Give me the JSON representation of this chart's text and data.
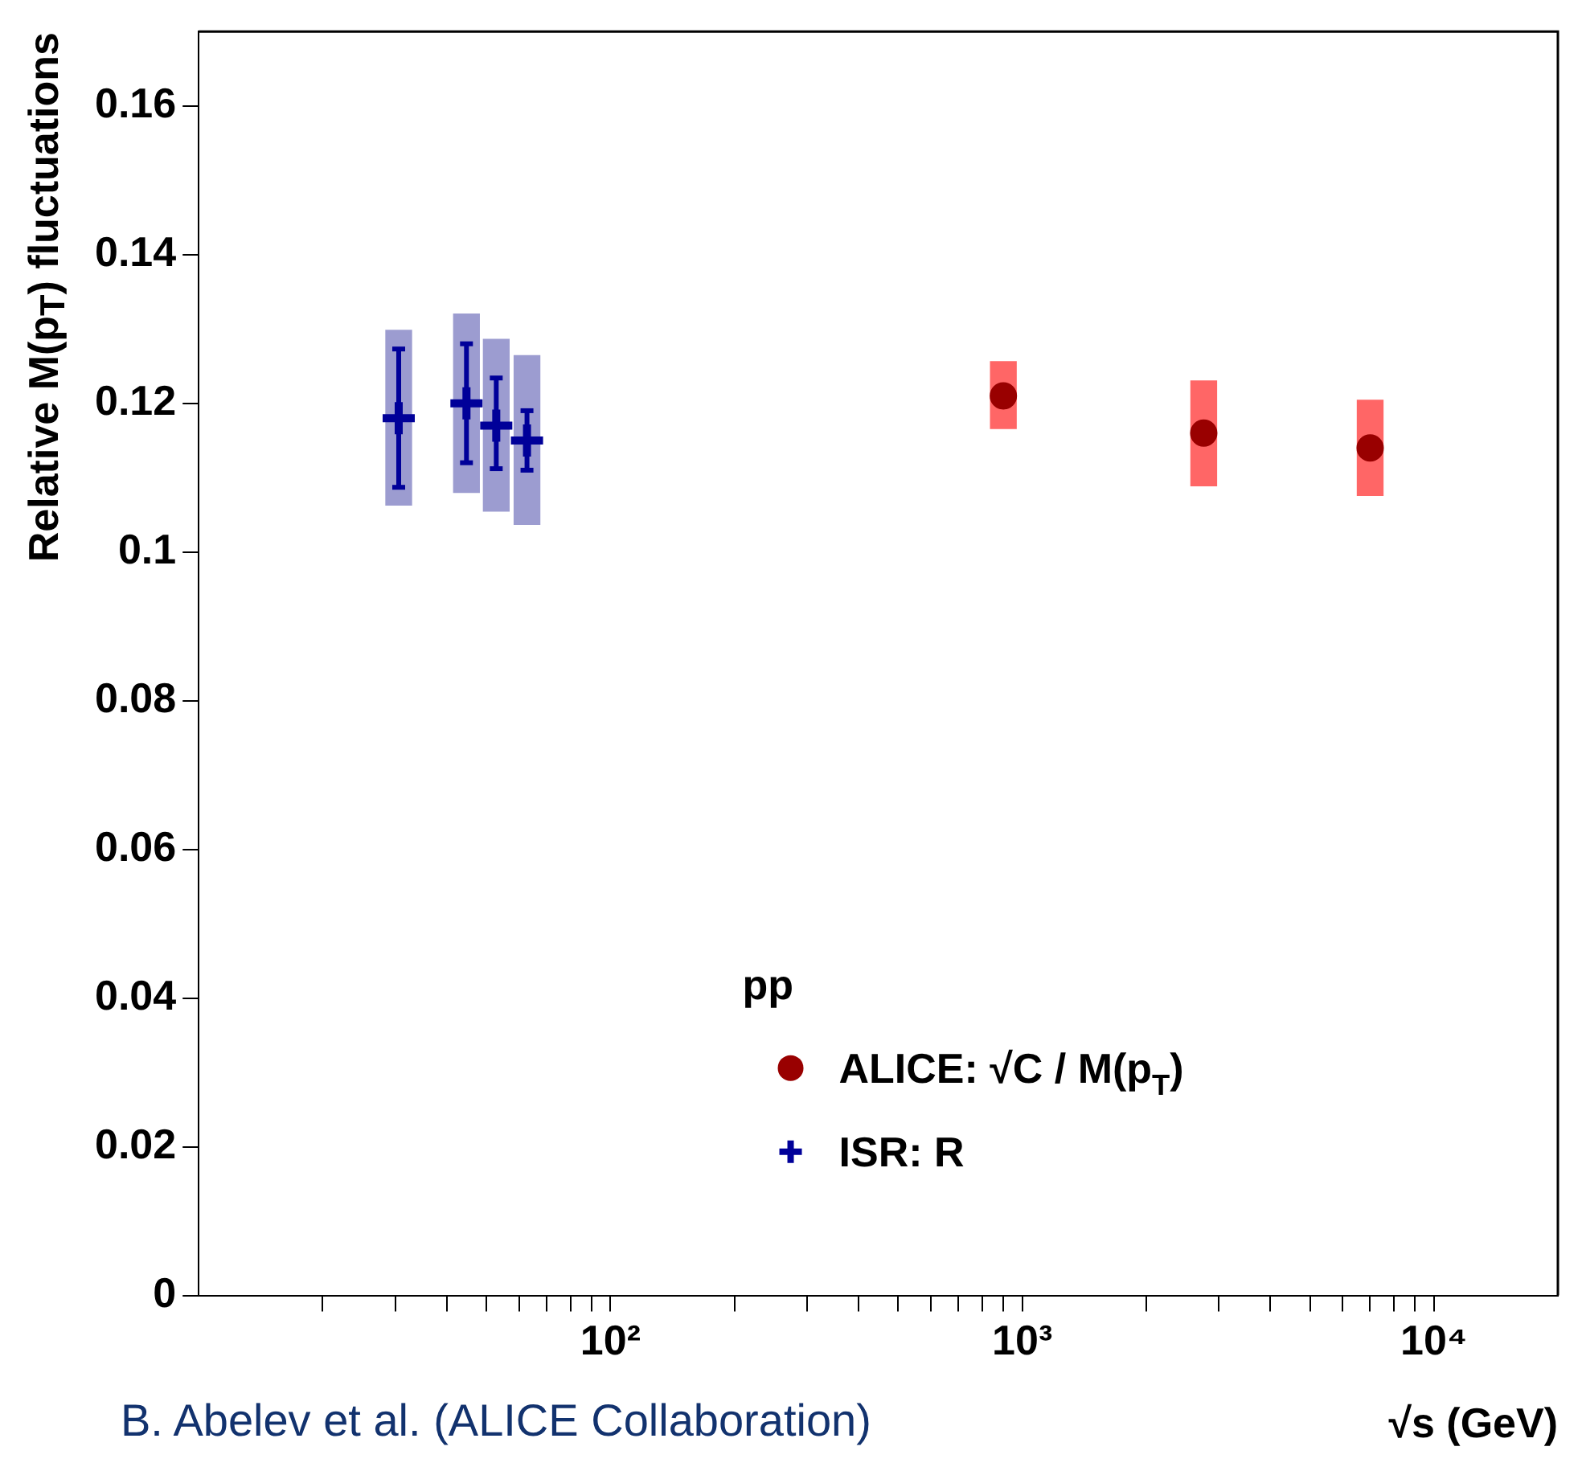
{
  "chart_data": {
    "type": "scatter",
    "xlabel": "√s  (GeV)",
    "ylabel": "Relative M(p$_{T}$) fluctuations",
    "legend_title": "pp",
    "log": "x",
    "legend": "bottom right",
    "grid": false,
    "xlim": [
      10,
      20000
    ],
    "ylim": [
      0,
      0.17
    ],
    "xticks": [
      {
        "value": 20,
        "label": null
      },
      {
        "value": 30,
        "label": null
      },
      {
        "value": 40,
        "label": null
      },
      {
        "value": 50,
        "label": null
      },
      {
        "value": 60,
        "label": null
      },
      {
        "value": 70,
        "label": null
      },
      {
        "value": 80,
        "label": null
      },
      {
        "value": 90,
        "label": null
      },
      {
        "value": 100,
        "label": "10²"
      },
      {
        "value": 200,
        "label": null
      },
      {
        "value": 300,
        "label": null
      },
      {
        "value": 400,
        "label": null
      },
      {
        "value": 500,
        "label": null
      },
      {
        "value": 600,
        "label": null
      },
      {
        "value": 700,
        "label": null
      },
      {
        "value": 800,
        "label": null
      },
      {
        "value": 900,
        "label": null
      },
      {
        "value": 1000,
        "label": "10³"
      },
      {
        "value": 2000,
        "label": null
      },
      {
        "value": 3000,
        "label": null
      },
      {
        "value": 4000,
        "label": null
      },
      {
        "value": 5000,
        "label": null
      },
      {
        "value": 6000,
        "label": null
      },
      {
        "value": 7000,
        "label": null
      },
      {
        "value": 8000,
        "label": null
      },
      {
        "value": 9000,
        "label": null
      },
      {
        "value": 10000,
        "label": "10⁴"
      }
    ],
    "yticks": [
      0,
      0.02,
      0.04,
      0.06,
      0.08,
      0.1,
      0.12,
      0.14,
      0.16
    ],
    "series": [
      {
        "type": "bar",
        "color": "#9c9cd0",
        "x": [
          30.6,
          44.7,
          52.8,
          62.7
        ],
        "base": [
          0.1063,
          0.108,
          0.1055,
          0.1037
        ],
        "values": [
          0.0235,
          0.024,
          0.0231,
          0.0227
        ]
      },
      {
        "type": "bar",
        "color": "#ff6666",
        "x": [
          900,
          2760,
          7000
        ],
        "base": [
          0.1166,
          0.1089,
          0.1076
        ],
        "values": [
          0.009,
          0.0141,
          0.0128
        ]
      },
      {
        "name": "ISR: R",
        "color": "#000099",
        "marker": "cross",
        "x": [
          30.6,
          44.7,
          52.8,
          62.7
        ],
        "values": [
          0.118,
          0.12,
          0.117,
          0.115
        ],
        "errors": [
          [
            0.1087,
            0.1273
          ],
          [
            0.112,
            0.128
          ],
          [
            0.1112,
            0.1234
          ],
          [
            0.111,
            0.119
          ]
        ]
      },
      {
        "name": "ALICE: √C / M(p$_{T}$)",
        "color": "#990000",
        "marker": "circle",
        "x": [
          900,
          2760,
          7000
        ],
        "values": [
          0.121,
          0.116,
          0.114
        ]
      }
    ],
    "annotations": [
      "B. Abelev et al. (ALICE Collaboration)"
    ]
  }
}
